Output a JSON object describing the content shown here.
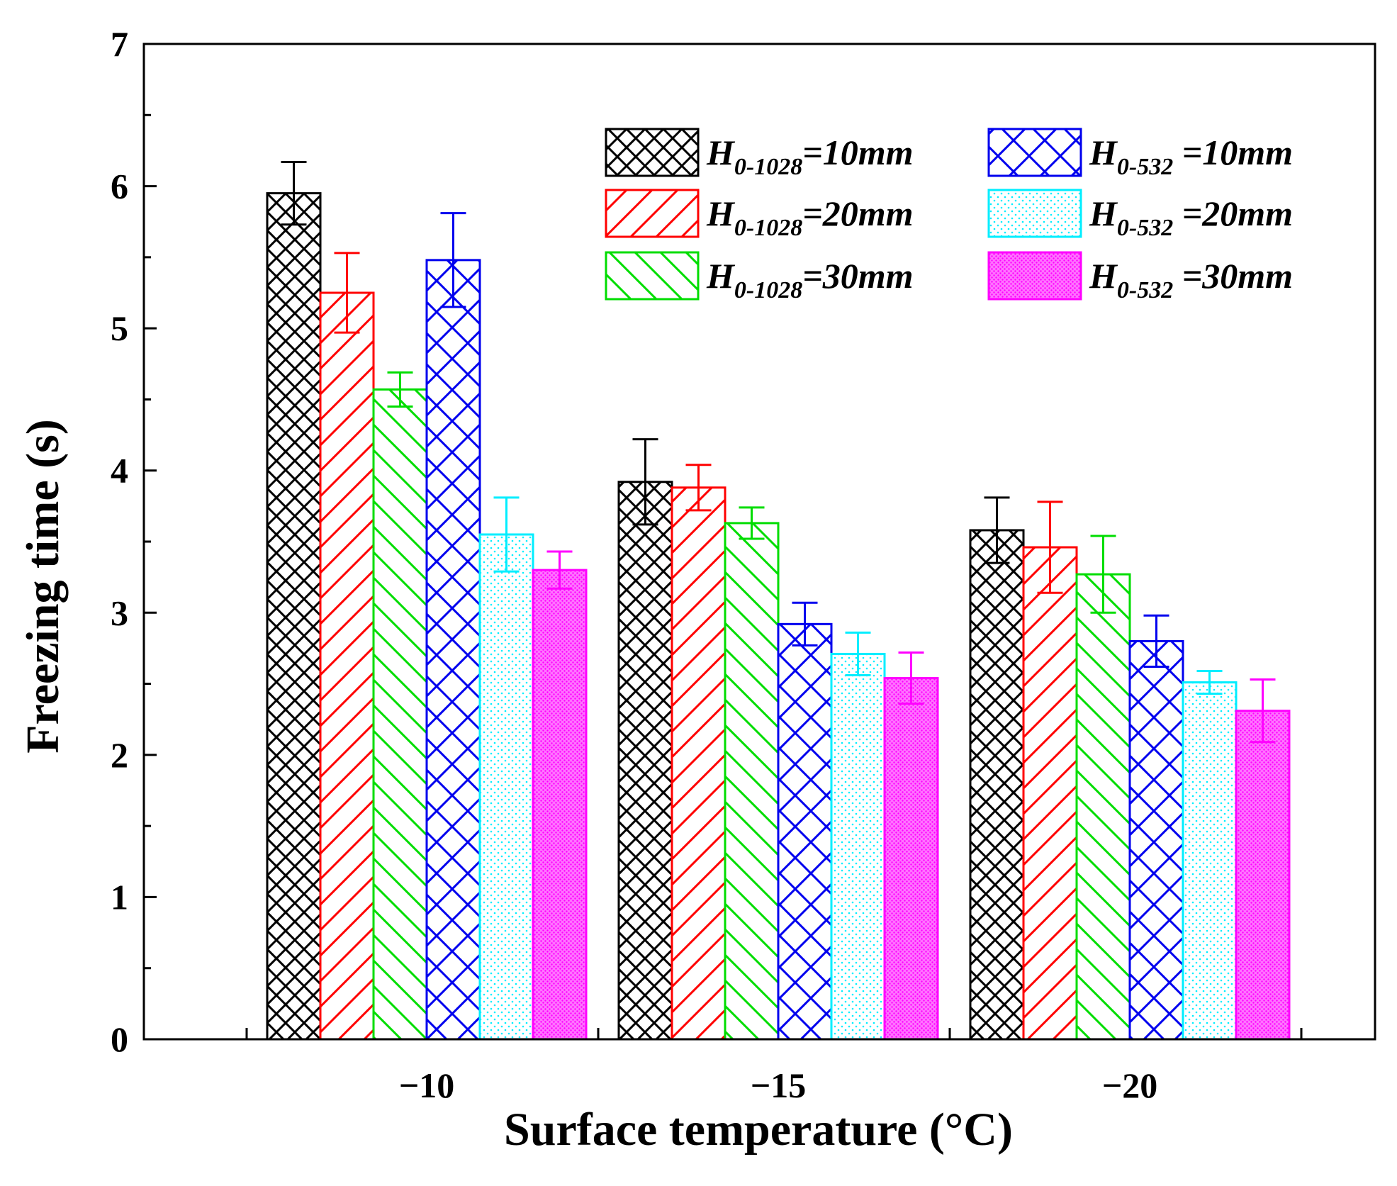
{
  "chart_data": {
    "type": "bar",
    "xlabel": "Surface temperature (°C)",
    "ylabel": "Freezing time (s)",
    "ylim": [
      0,
      7
    ],
    "yticks": [
      "0",
      "1",
      "2",
      "3",
      "4",
      "5",
      "6",
      "7"
    ],
    "categories": [
      "−10",
      "−15",
      "−20"
    ],
    "legend_position": "top-right",
    "series": [
      {
        "name": "H0-1028=10mm",
        "label_main": "H",
        "label_sub": "0-1028",
        "label_rest": "=10mm",
        "color": "#000000",
        "pattern": "crosshatch",
        "values": [
          5.95,
          3.92,
          3.58
        ],
        "errors": [
          0.22,
          0.3,
          0.23
        ]
      },
      {
        "name": "H0-1028=20mm",
        "label_main": "H",
        "label_sub": "0-1028",
        "label_rest": "=20mm",
        "color": "#ff0000",
        "pattern": "diag-up",
        "values": [
          5.25,
          3.88,
          3.46
        ],
        "errors": [
          0.28,
          0.16,
          0.32
        ]
      },
      {
        "name": "H0-1028=30mm",
        "label_main": "H",
        "label_sub": "0-1028",
        "label_rest": "=30mm",
        "color": "#00dd00",
        "pattern": "diag-down",
        "values": [
          4.57,
          3.63,
          3.27
        ],
        "errors": [
          0.12,
          0.11,
          0.27
        ]
      },
      {
        "name": "H0-532 =10mm",
        "label_main": "H",
        "label_sub": "0-532",
        "label_rest": " =10mm",
        "color": "#0000ee",
        "pattern": "crosshatch-wide",
        "values": [
          5.48,
          2.92,
          2.8
        ],
        "errors": [
          0.33,
          0.15,
          0.18
        ]
      },
      {
        "name": "H0-532 =20mm",
        "label_main": "H",
        "label_sub": "0-532",
        "label_rest": " =20mm",
        "color": "#00eeff",
        "pattern": "dots",
        "values": [
          3.55,
          2.71,
          2.51
        ],
        "errors": [
          0.26,
          0.15,
          0.08
        ]
      },
      {
        "name": "H0-532 =30mm",
        "label_main": "H",
        "label_sub": "0-532",
        "label_rest": " =30mm",
        "color": "#ff00ff",
        "pattern": "dense",
        "values": [
          3.3,
          2.54,
          2.31
        ],
        "errors": [
          0.13,
          0.18,
          0.22
        ]
      }
    ]
  }
}
